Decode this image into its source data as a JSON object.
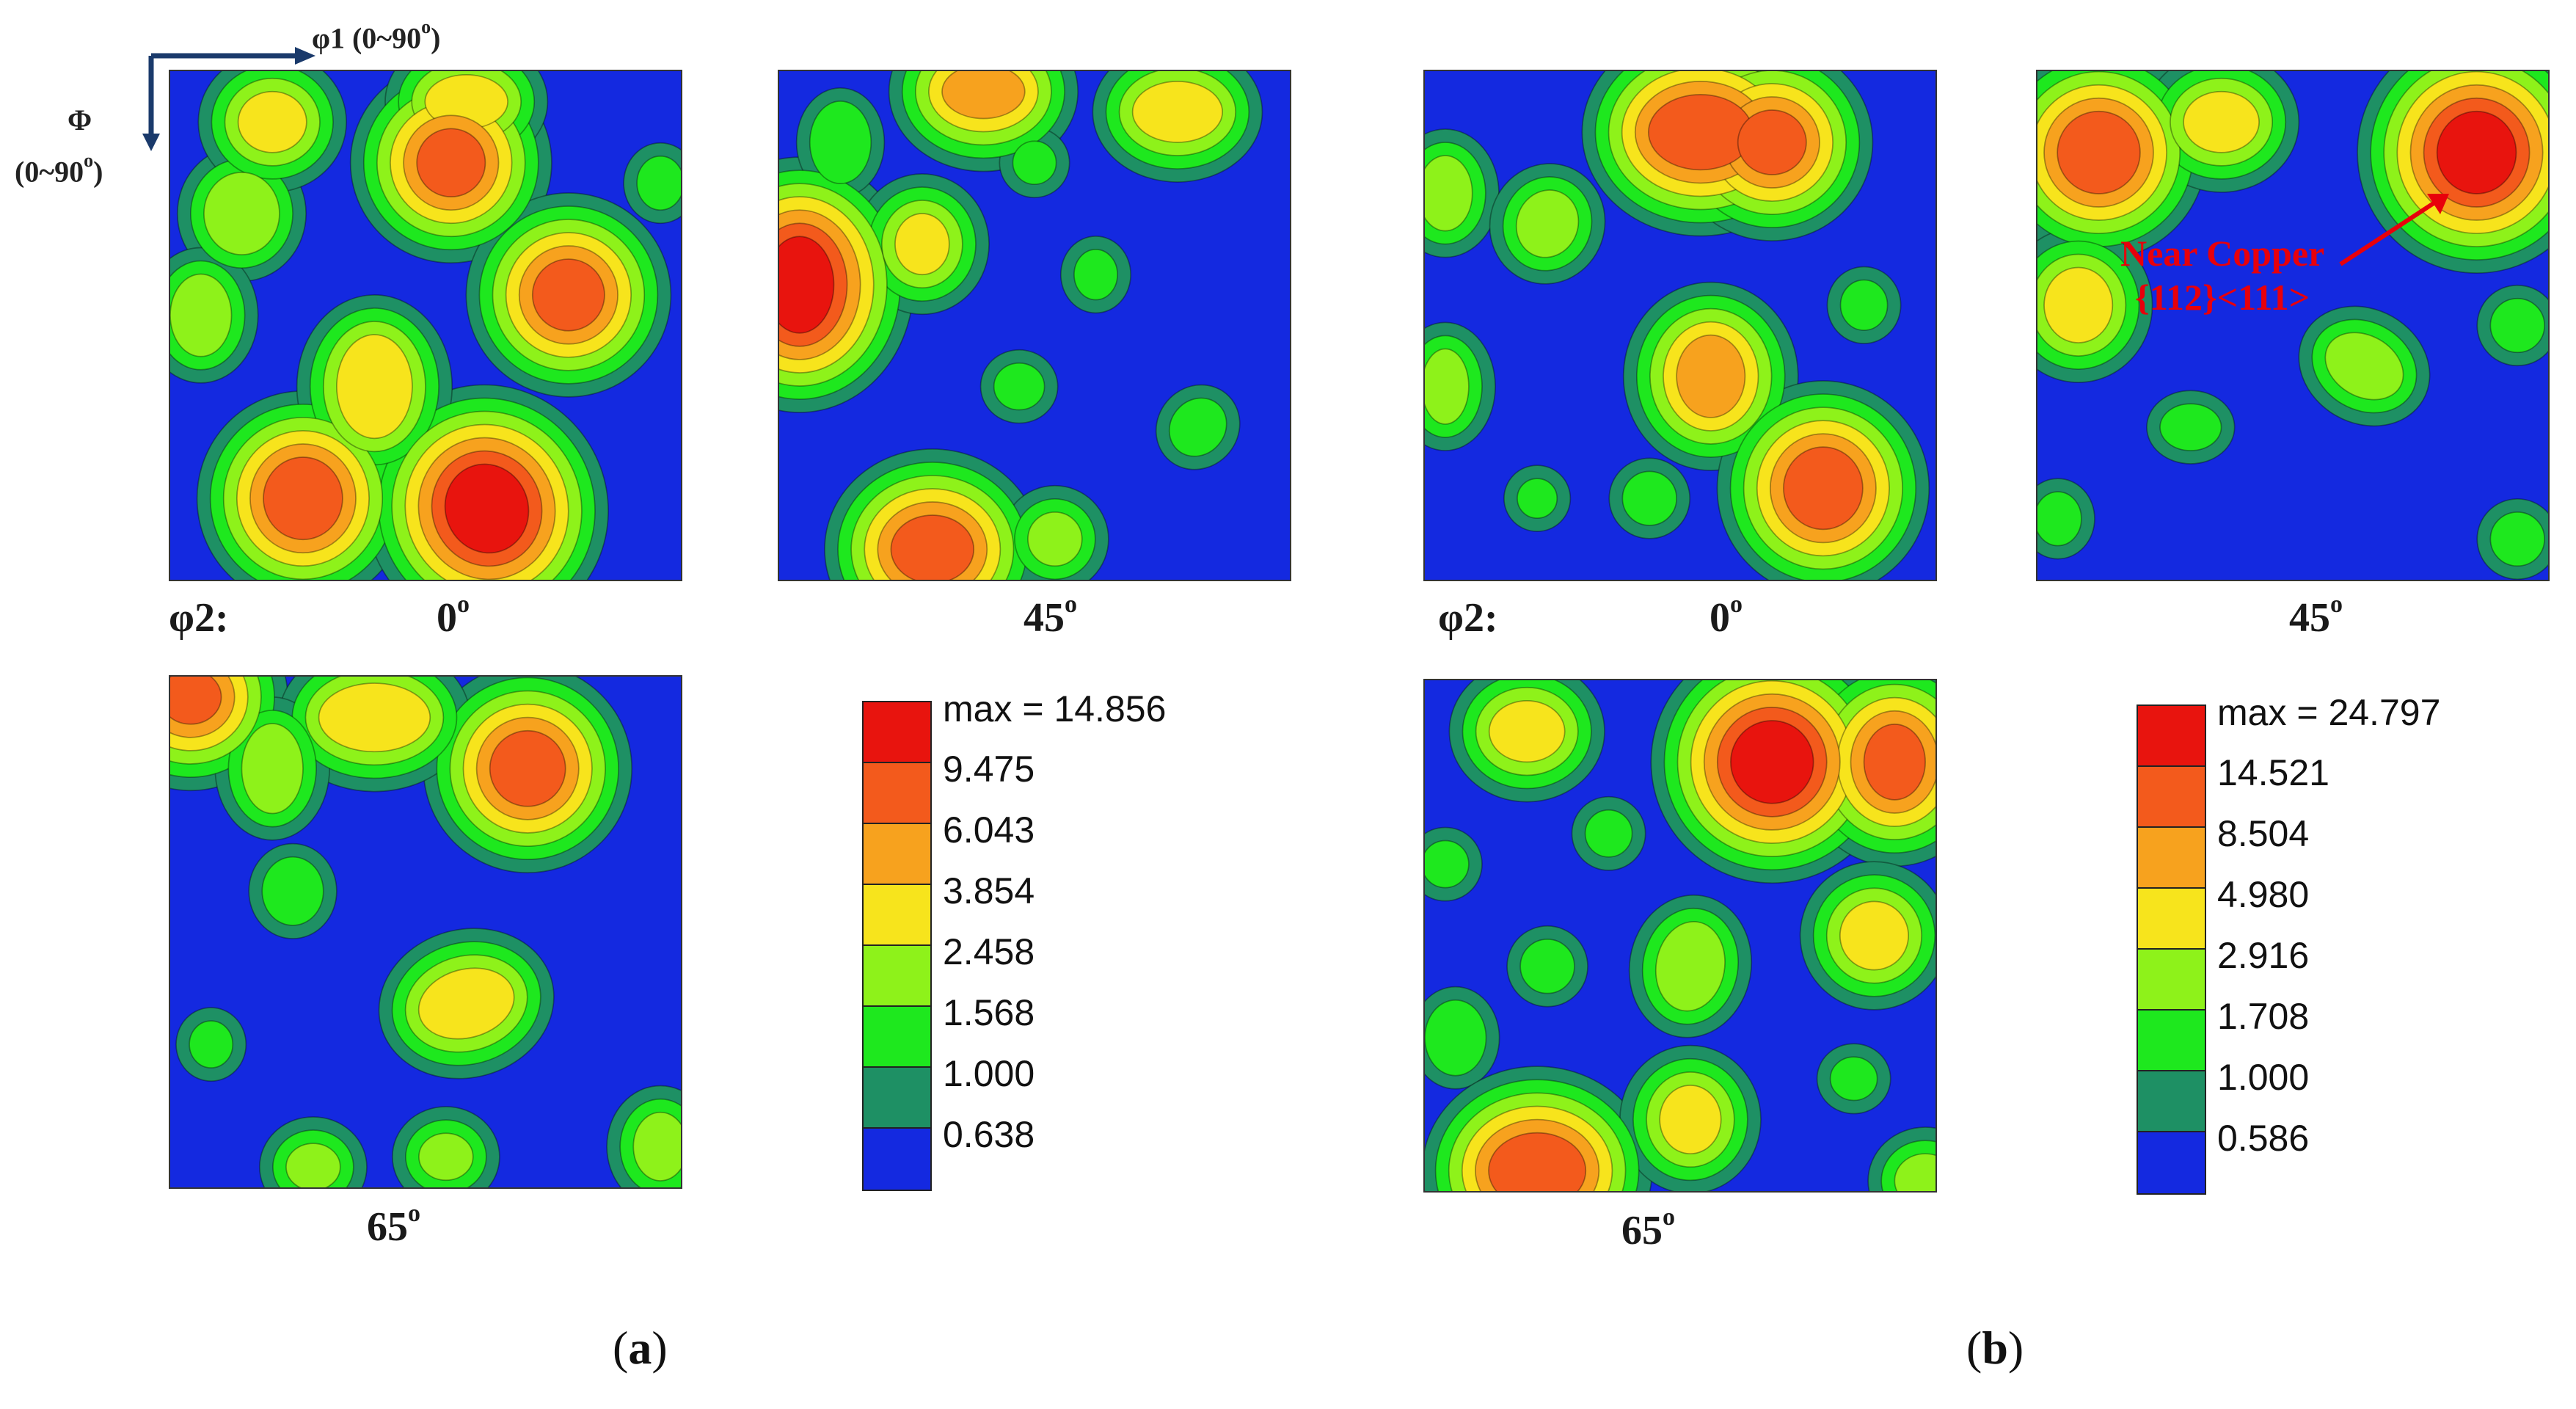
{
  "colors": {
    "levels": [
      "#1429e0",
      "#1e9064",
      "#1ee81e",
      "#8ef21a",
      "#f7e41c",
      "#f7a21e",
      "#f35a1c",
      "#e8140e"
    ],
    "axis_arrow": "#1a3a6b",
    "annotation": "#e8000b"
  },
  "axes": {
    "phi1_label": "φ1 (0~90",
    "phi1_sup": "o",
    "phi1_close": ")",
    "Phi_symbol": "Φ",
    "Phi_range": "(0~90",
    "Phi_sup": "o",
    "Phi_close": ")"
  },
  "panel_a": {
    "phi2_prefix": "φ2:",
    "label_0": "0",
    "label_45": "45",
    "label_65": "65",
    "deg": "o",
    "legend": {
      "max_label": "max = 14.856",
      "levels": [
        "9.475",
        "6.043",
        "3.854",
        "2.458",
        "1.568",
        "1.000",
        "0.638"
      ]
    },
    "caption_open": "(",
    "caption_letter": "a",
    "caption_close": ")"
  },
  "panel_b": {
    "phi2_prefix": "φ2:",
    "label_0": "0",
    "label_45": "45",
    "label_65": "65",
    "deg": "o",
    "legend": {
      "max_label": "max = 24.797",
      "levels": [
        "14.521",
        "8.504",
        "4.980",
        "2.916",
        "1.708",
        "1.000",
        "0.586"
      ]
    },
    "annotation_line1": "Near Copper",
    "annotation_line2": "{112}<111>",
    "caption_open": "(",
    "caption_letter": "b",
    "caption_close": ")"
  }
}
